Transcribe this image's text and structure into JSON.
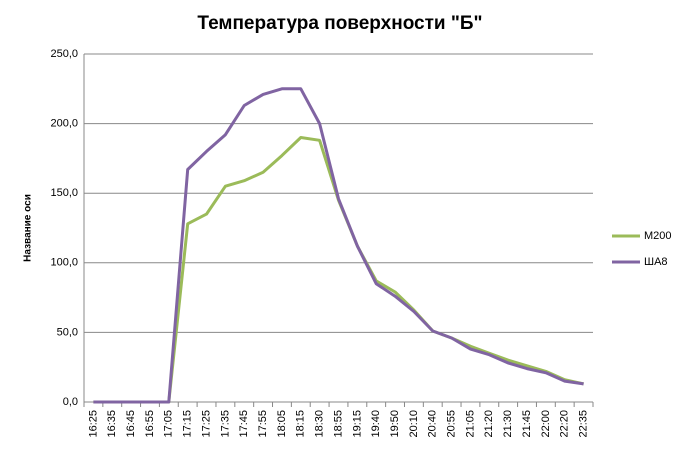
{
  "chart_data": {
    "type": "line",
    "title": "Температура поверхности \"Б\"",
    "y_label": "Название оси",
    "categories": [
      "16:25",
      "16:35",
      "16:45",
      "16:55",
      "17:05",
      "17:15",
      "17:25",
      "17:35",
      "17:45",
      "17:55",
      "18:05",
      "18:15",
      "18:30",
      "18:55",
      "19:15",
      "19:40",
      "19:50",
      "20:10",
      "20:40",
      "20:55",
      "21:05",
      "21:20",
      "21:30",
      "21:45",
      "22:00",
      "22:20",
      "22:35"
    ],
    "series": [
      {
        "name": "M200",
        "color": "#9bbb59",
        "values": [
          0,
          0,
          0,
          0,
          0,
          128,
          135,
          155,
          159,
          165,
          177,
          190,
          188,
          145,
          112,
          87,
          79,
          66,
          51,
          46,
          40,
          35,
          30,
          26,
          22,
          16,
          13
        ]
      },
      {
        "name": "ША8",
        "color": "#8064a2",
        "values": [
          0,
          0,
          0,
          0,
          0,
          167,
          180,
          192,
          213,
          221,
          225,
          225,
          200,
          146,
          112,
          85,
          76,
          65,
          51,
          46,
          38,
          34,
          28,
          24,
          21,
          15,
          13
        ]
      }
    ],
    "ylim": [
      0,
      250
    ],
    "yticks": [
      {
        "value": 0,
        "label": "0,0"
      },
      {
        "value": 50,
        "label": "50,0"
      },
      {
        "value": 100,
        "label": "100,0"
      },
      {
        "value": 150,
        "label": "150,0"
      },
      {
        "value": 200,
        "label": "200,0"
      },
      {
        "value": 250,
        "label": "250,0"
      }
    ],
    "grid": true,
    "legend": "right"
  }
}
